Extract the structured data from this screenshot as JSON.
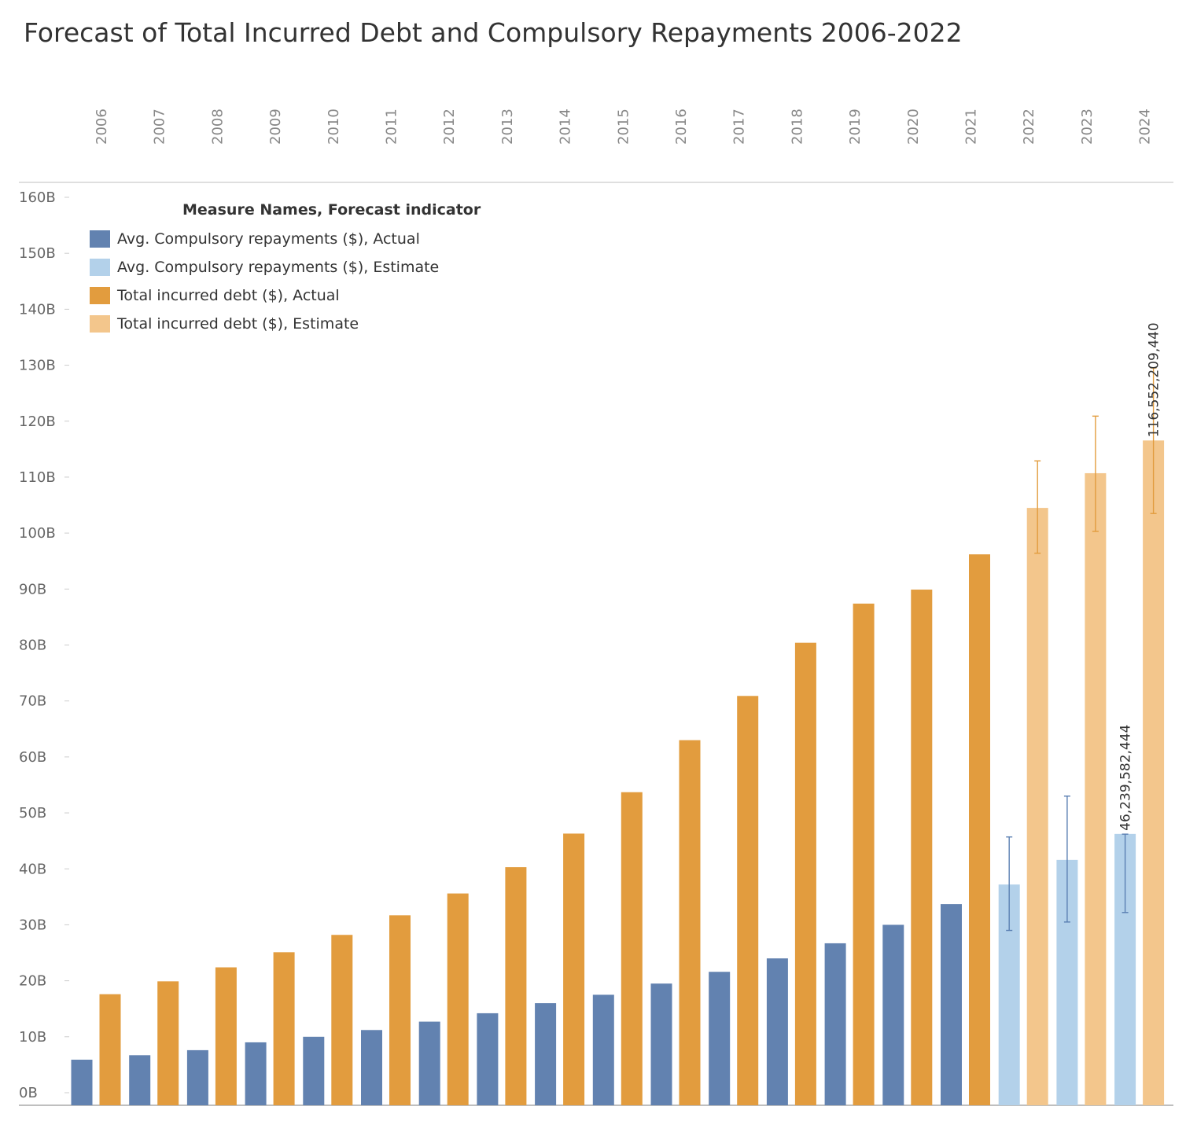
{
  "title": "Forecast of Total Incurred Debt and Compulsory Repayments 2006-2022",
  "colors": {
    "repay_actual": "#6282b0",
    "repay_estimate": "#b3d1ea",
    "debt_actual": "#e29c3e",
    "debt_estimate": "#f3c68c",
    "gridline": "#cccccc",
    "axis_text": "#666666"
  },
  "legend": {
    "title": "Measure Names, Forecast indicator",
    "items": [
      {
        "label": "Avg. Compulsory repayments ($), Actual",
        "color": "#6282b0"
      },
      {
        "label": "Avg. Compulsory repayments ($), Estimate",
        "color": "#b3d1ea"
      },
      {
        "label": "Total incurred debt ($), Actual",
        "color": "#e29c3e"
      },
      {
        "label": "Total incurred debt ($), Estimate",
        "color": "#f3c68c"
      }
    ]
  },
  "chart_data": {
    "type": "bar",
    "title": "Forecast of Total Incurred Debt and Compulsory Repayments 2006-2022",
    "legend_position": "top-left",
    "grid": false,
    "categories": [
      "2006",
      "2007",
      "2008",
      "2009",
      "2010",
      "2011",
      "2012",
      "2013",
      "2014",
      "2015",
      "2016",
      "2017",
      "2018",
      "2019",
      "2020",
      "2021",
      "2022",
      "2023",
      "2024"
    ],
    "ylim": [
      0,
      160
    ],
    "y_unit": "B",
    "y_ticks": [
      "0B",
      "10B",
      "20B",
      "30B",
      "40B",
      "50B",
      "60B",
      "70B",
      "80B",
      "90B",
      "100B",
      "110B",
      "120B",
      "130B",
      "140B",
      "150B",
      "160B"
    ],
    "estimate_start_index": 16,
    "series": [
      {
        "name": "Avg. Compulsory repayments ($)",
        "values": [
          5.9,
          6.7,
          7.6,
          9.0,
          10.0,
          11.2,
          12.7,
          14.2,
          16.0,
          17.5,
          19.5,
          21.6,
          24.0,
          26.7,
          30.0,
          33.7,
          37.2,
          41.6,
          46.24
        ],
        "error_low": [
          null,
          null,
          null,
          null,
          null,
          null,
          null,
          null,
          null,
          null,
          null,
          null,
          null,
          null,
          null,
          null,
          29.0,
          30.5,
          32.2
        ],
        "error_high": [
          null,
          null,
          null,
          null,
          null,
          null,
          null,
          null,
          null,
          null,
          null,
          null,
          null,
          null,
          null,
          null,
          45.7,
          53.0,
          46.2
        ]
      },
      {
        "name": "Total incurred debt ($)",
        "values": [
          17.6,
          19.9,
          22.4,
          25.1,
          28.2,
          31.7,
          35.6,
          40.3,
          46.3,
          53.7,
          63.0,
          70.9,
          80.4,
          87.4,
          89.9,
          96.2,
          104.5,
          110.7,
          116.55
        ],
        "error_low": [
          null,
          null,
          null,
          null,
          null,
          null,
          null,
          null,
          null,
          null,
          null,
          null,
          null,
          null,
          null,
          null,
          96.4,
          100.3,
          103.5
        ],
        "error_high": [
          null,
          null,
          null,
          null,
          null,
          null,
          null,
          null,
          null,
          null,
          null,
          null,
          null,
          null,
          null,
          null,
          112.9,
          120.9,
          129.5
        ]
      }
    ],
    "annotations": [
      {
        "series": 0,
        "category": "2024",
        "text": "46,239,582,444"
      },
      {
        "series": 1,
        "category": "2024",
        "text": "116,552,209,440"
      }
    ]
  }
}
